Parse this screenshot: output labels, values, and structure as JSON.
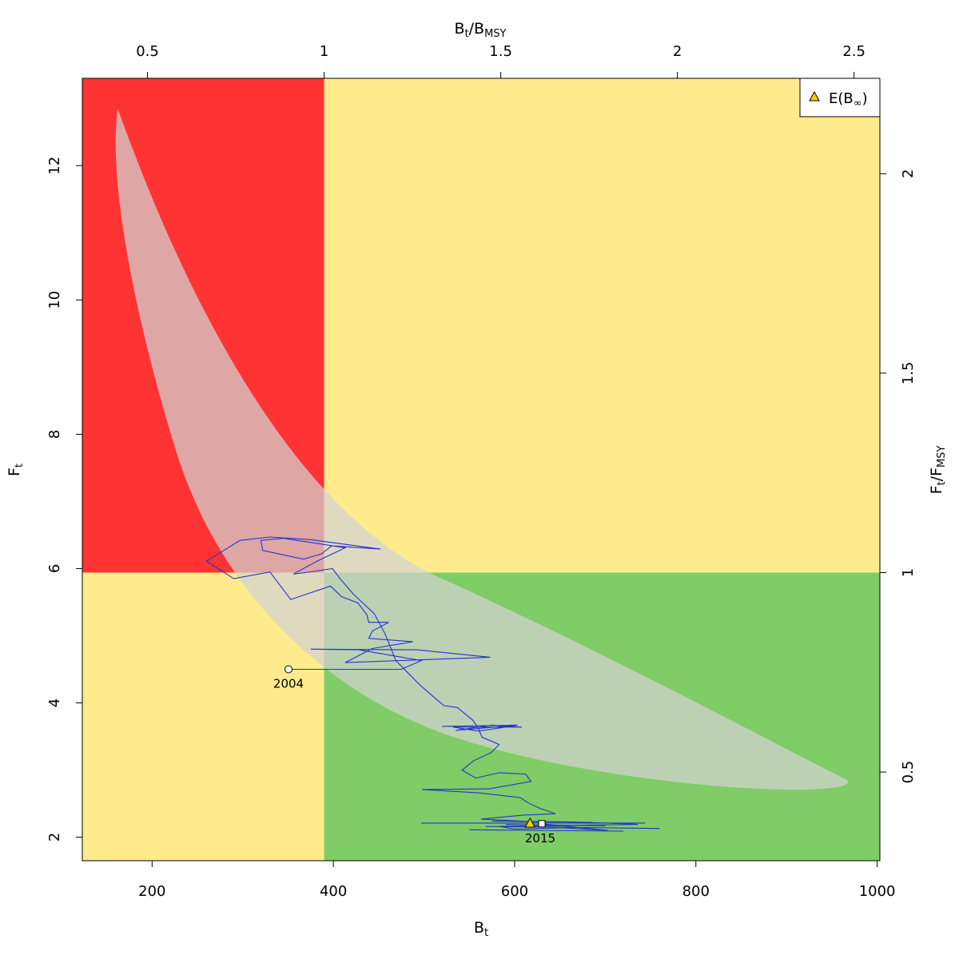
{
  "chart_data": {
    "type": "scatter",
    "title": "",
    "xlabel": {
      "main": "B",
      "sub": "t"
    },
    "ylabel": {
      "main": "F",
      "sub": "t"
    },
    "x2label": {
      "main": "B",
      "sub": "t",
      "slash": "/",
      "main2": "B",
      "sub2": "MSY"
    },
    "y2label": {
      "main": "F",
      "sub": "t",
      "slash": "/",
      "main2": "F",
      "sub2": "MSY"
    },
    "xlim": [
      123,
      1003
    ],
    "ylim": [
      1.65,
      13.3
    ],
    "x_ticks": [
      200,
      400,
      600,
      800,
      1000
    ],
    "y_ticks": [
      2,
      4,
      6,
      8,
      10,
      12
    ],
    "x2_ticks": [
      0.5,
      1,
      1.5,
      2,
      2.5
    ],
    "y2_ticks": [
      0.5,
      1,
      1.5,
      2
    ],
    "x_tick_labels": [
      "200",
      "400",
      "600",
      "800",
      "1000"
    ],
    "y_tick_labels": [
      "2",
      "4",
      "6",
      "8",
      "10",
      "12"
    ],
    "x2_tick_labels": [
      "0.5",
      "1",
      "1.5",
      "2",
      "2.5"
    ],
    "y2_tick_labels": [
      "0.5",
      "1",
      "1.5",
      "2"
    ],
    "Bmsy": 389.8,
    "Fmsy": 5.94,
    "zone_colors": {
      "red": "#ff3333",
      "yellow": "#ffeb8c",
      "green": "#80cc66",
      "ellipse": "#d3d3d3",
      "trajectory": "#2233cc",
      "triangle": "#ffcc00"
    },
    "trajectory": {
      "name": "",
      "points": [
        [
          350.5,
          4.5
        ],
        [
          475,
          4.5
        ],
        [
          497,
          4.63
        ],
        [
          428,
          4.79
        ],
        [
          375,
          4.8
        ],
        [
          492,
          4.79
        ],
        [
          573,
          4.68
        ],
        [
          413,
          4.6
        ],
        [
          443,
          4.81
        ],
        [
          488,
          4.91
        ],
        [
          439,
          4.96
        ],
        [
          443,
          5.07
        ],
        [
          461,
          5.2
        ],
        [
          439,
          5.2
        ],
        [
          437,
          5.31
        ],
        [
          427,
          5.49
        ],
        [
          409,
          5.58
        ],
        [
          397,
          5.74
        ],
        [
          353,
          5.54
        ],
        [
          330,
          5.95
        ],
        [
          290,
          5.85
        ],
        [
          260,
          6.11
        ],
        [
          297,
          6.42
        ],
        [
          330,
          6.47
        ],
        [
          375,
          6.43
        ],
        [
          452,
          6.29
        ],
        [
          398,
          6.34
        ],
        [
          387,
          6.22
        ],
        [
          367,
          6.14
        ],
        [
          322,
          6.27
        ],
        [
          320,
          6.42
        ],
        [
          345,
          6.45
        ],
        [
          413,
          6.31
        ],
        [
          382,
          6.11
        ],
        [
          356,
          5.92
        ],
        [
          369,
          5.94
        ],
        [
          399,
          6.0
        ],
        [
          408,
          5.84
        ],
        [
          422,
          5.62
        ],
        [
          445,
          5.33
        ],
        [
          457,
          5.03
        ],
        [
          469,
          4.63
        ],
        [
          496,
          4.26
        ],
        [
          514,
          4.05
        ],
        [
          522,
          3.96
        ],
        [
          537,
          3.93
        ],
        [
          554,
          3.74
        ],
        [
          560,
          3.62
        ],
        [
          564,
          3.49
        ],
        [
          583,
          3.38
        ],
        [
          574,
          3.26
        ],
        [
          555,
          3.14
        ],
        [
          542,
          3.0
        ],
        [
          557,
          2.88
        ],
        [
          583,
          2.96
        ],
        [
          612,
          2.94
        ],
        [
          618,
          2.83
        ],
        [
          572,
          2.72
        ],
        [
          498,
          2.71
        ],
        [
          560,
          2.66
        ],
        [
          606,
          2.59
        ],
        [
          615,
          2.51
        ],
        [
          628,
          2.43
        ],
        [
          645,
          2.35
        ],
        [
          610,
          2.33
        ],
        [
          563,
          2.27
        ],
        [
          621,
          2.23
        ],
        [
          654,
          2.23
        ],
        [
          701,
          2.21
        ],
        [
          736,
          2.19
        ],
        [
          583,
          2.16
        ],
        [
          600,
          2.12
        ],
        [
          652,
          2.14
        ],
        [
          703,
          2.1
        ],
        [
          630,
          2.2
        ]
      ],
      "tail_segments": [
        [
          [
            497,
            2.21
          ],
          [
            744,
            2.21
          ]
        ],
        [
          [
            568,
            2.16
          ],
          [
            760,
            2.13
          ]
        ],
        [
          [
            550,
            2.11
          ],
          [
            720,
            2.09
          ]
        ],
        [
          [
            575,
            2.24
          ],
          [
            685,
            2.22
          ]
        ],
        [
          [
            590,
            2.19
          ],
          [
            700,
            2.17
          ]
        ]
      ]
    },
    "excursion": [
      [
        520,
        3.65
      ],
      [
        603,
        3.67
      ],
      [
        535,
        3.59
      ],
      [
        575,
        3.67
      ],
      [
        608,
        3.64
      ],
      [
        532,
        3.64
      ],
      [
        560,
        3.58
      ],
      [
        600,
        3.66
      ]
    ],
    "start_point": {
      "year": "2004",
      "x": 350.5,
      "y": 4.5
    },
    "end_point": {
      "year": "2015",
      "x": 630,
      "y": 2.2
    },
    "expected_equilibrium": {
      "x": 617,
      "y": 2.21
    },
    "credible_region": {
      "apex": [
        162,
        12.85
      ],
      "tail": [
        967,
        2.85
      ]
    },
    "legend": {
      "position": "top-right",
      "entries": [
        {
          "symbol": "triangle",
          "label_main": "E(B",
          "label_sub": "∞",
          "label_end": ")"
        }
      ]
    }
  }
}
